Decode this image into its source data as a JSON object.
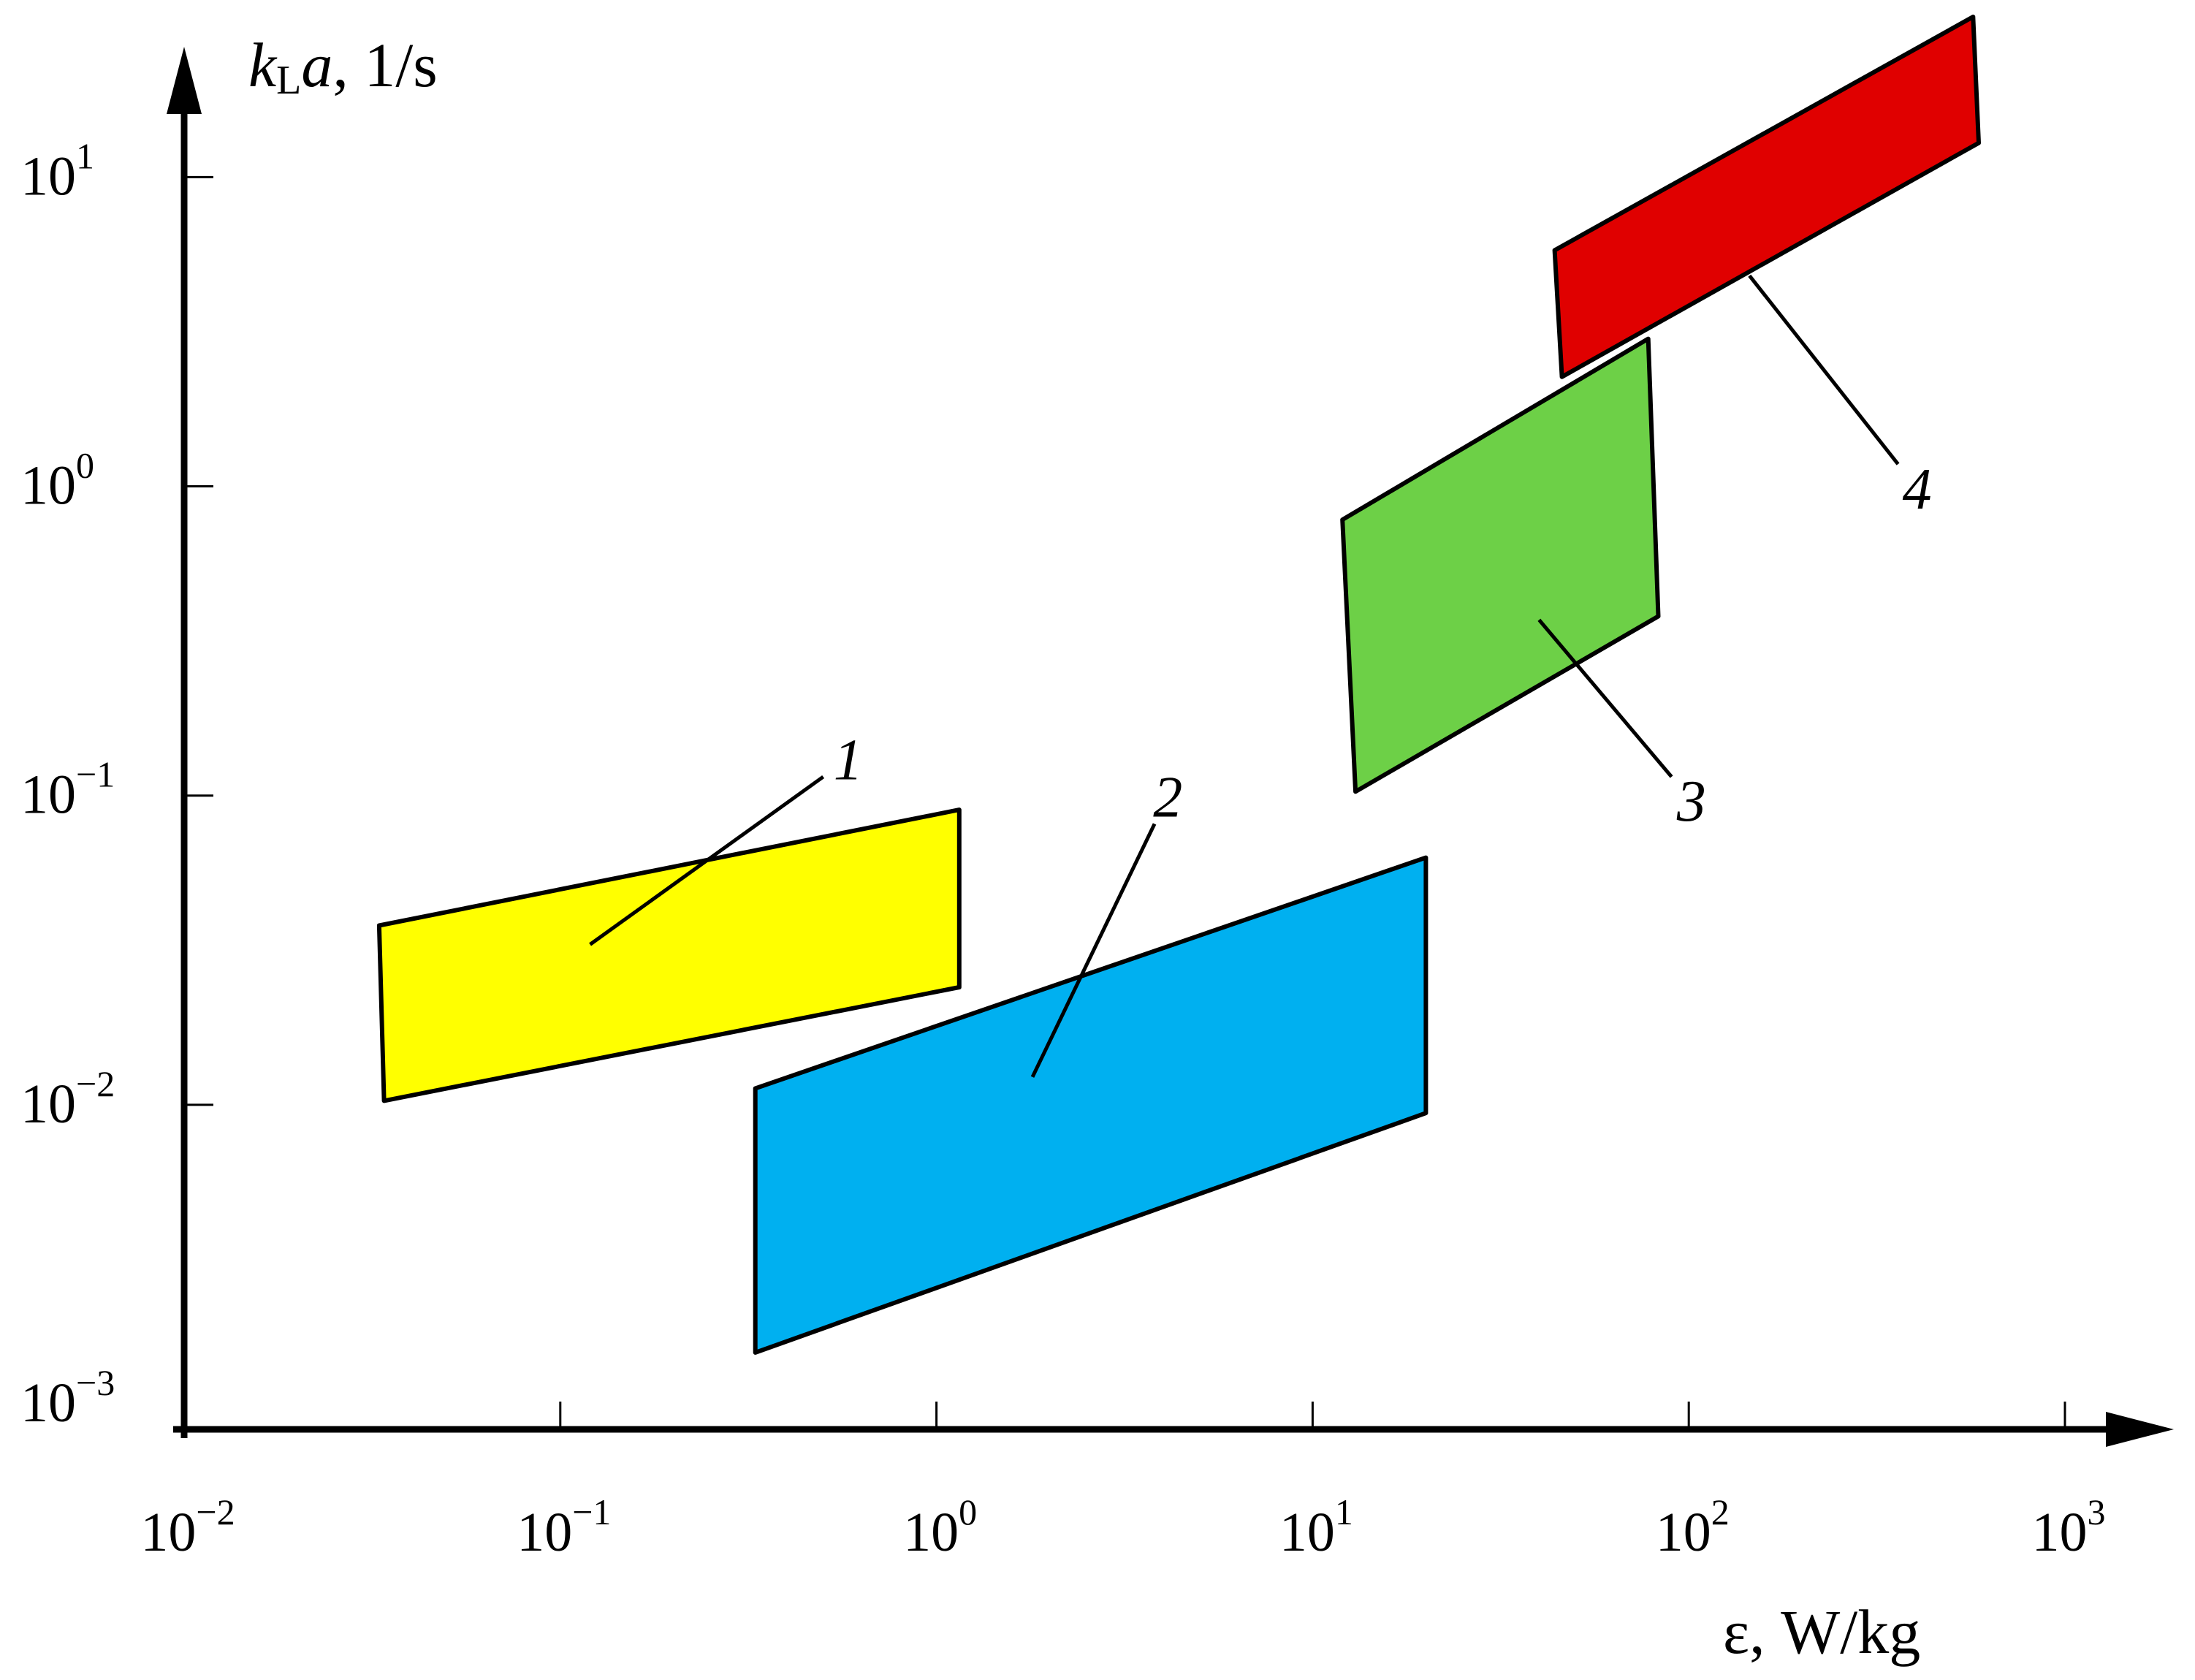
{
  "chart_data": {
    "type": "area",
    "title": "",
    "xlabel": {
      "prefix": "ε",
      "rest": ", W/kg"
    },
    "ylabel": {
      "k": "k",
      "sub": "L",
      "a": "a",
      "rest": ", 1/s"
    },
    "x_scale": "log",
    "y_scale": "log",
    "xlim": [
      0.01,
      1000
    ],
    "ylim": [
      0.001,
      20
    ],
    "x_ticks": [
      {
        "value": 0.01,
        "base": "10",
        "exp": "−2"
      },
      {
        "value": 0.1,
        "base": "10",
        "exp": "−1"
      },
      {
        "value": 1,
        "base": "10",
        "exp": "0"
      },
      {
        "value": 10,
        "base": "10",
        "exp": "1"
      },
      {
        "value": 100,
        "base": "10",
        "exp": "2"
      },
      {
        "value": 1000,
        "base": "10",
        "exp": "3"
      }
    ],
    "y_ticks": [
      {
        "value": 0.001,
        "base": "10",
        "exp": "−3"
      },
      {
        "value": 0.01,
        "base": "10",
        "exp": "−2"
      },
      {
        "value": 0.1,
        "base": "10",
        "exp": "−1"
      },
      {
        "value": 1,
        "base": "10",
        "exp": "0"
      },
      {
        "value": 10,
        "base": "10",
        "exp": "1"
      }
    ],
    "grid": false,
    "legend": "none",
    "regions": [
      {
        "label": "1",
        "color": "#ffff00",
        "polygon": [
          [
            0.033,
            0.038
          ],
          [
            1.15,
            0.09
          ],
          [
            1.15,
            0.024
          ],
          [
            0.034,
            0.0103
          ]
        ],
        "leader_from": [
          0.12,
          0.033
        ],
        "leader_to": [
          0.5,
          0.115
        ]
      },
      {
        "label": "2",
        "color": "#00b0f0",
        "polygon": [
          [
            0.33,
            0.0113
          ],
          [
            20.0,
            0.063
          ],
          [
            20.0,
            0.0094
          ],
          [
            0.33,
            0.00158
          ]
        ],
        "leader_from": [
          1.8,
          0.0123
        ],
        "leader_to": [
          3.8,
          0.081
        ]
      },
      {
        "label": "3",
        "color": "#6dd047",
        "polygon": [
          [
            12.0,
            0.78
          ],
          [
            78.0,
            3.0
          ],
          [
            83.0,
            0.38
          ],
          [
            13.0,
            0.103
          ]
        ],
        "leader_from": [
          40.0,
          0.37
        ],
        "leader_to": [
          90.0,
          0.115
        ]
      },
      {
        "label": "4",
        "color": "#e00000",
        "polygon": [
          [
            44.0,
            5.8
          ],
          [
            570.0,
            33.0
          ],
          [
            590.0,
            12.9
          ],
          [
            46.0,
            2.26
          ]
        ],
        "leader_from": [
          145.0,
          4.8
        ],
        "leader_to": [
          360.0,
          1.18
        ]
      }
    ]
  }
}
